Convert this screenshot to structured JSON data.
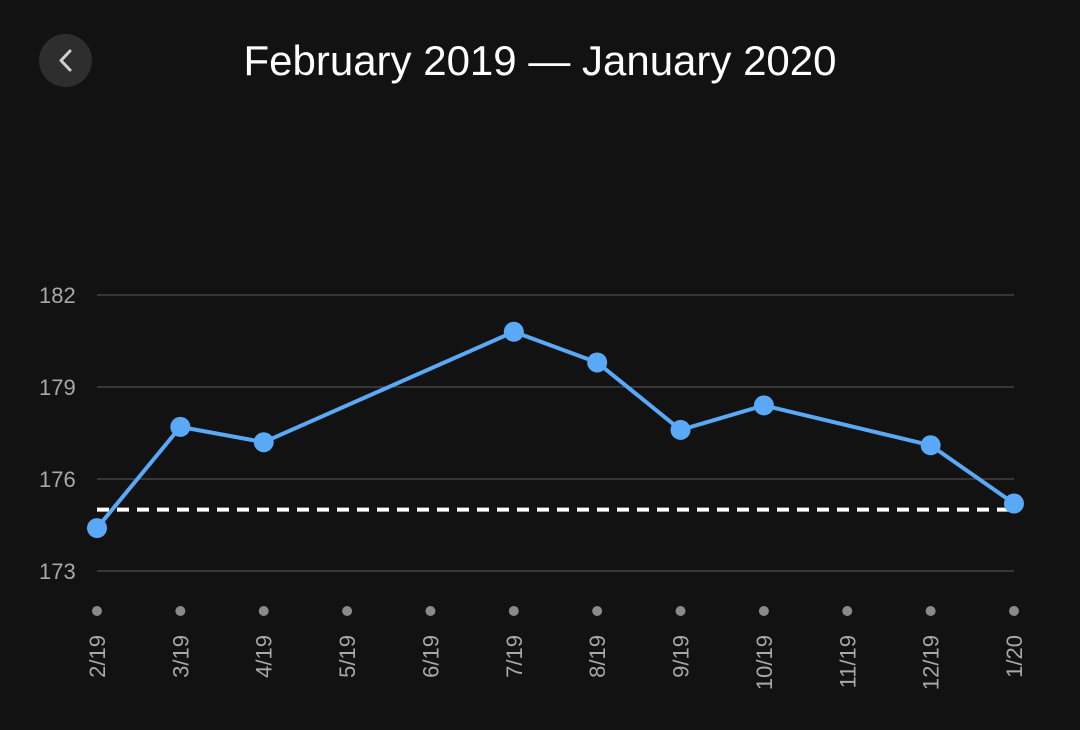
{
  "header": {
    "title": "February 2019 — January 2020",
    "back_icon": "chevron-left-icon"
  },
  "colors": {
    "background": "#121212",
    "line": "#5aa9f6",
    "grid": "#5a5a5a",
    "tick_text": "#a8a8a8",
    "reference": "#ffffff"
  },
  "chart_data": {
    "type": "line",
    "title": "",
    "xlabel": "",
    "ylabel": "",
    "categories": [
      "2/19",
      "3/19",
      "4/19",
      "5/19",
      "6/19",
      "7/19",
      "8/19",
      "9/19",
      "10/19",
      "11/19",
      "12/19",
      "1/20"
    ],
    "series": [
      {
        "values": [
          174.4,
          177.7,
          177.2,
          null,
          null,
          180.8,
          179.8,
          177.6,
          178.4,
          null,
          177.1,
          175.2
        ]
      }
    ],
    "y_ticks": [
      173,
      176,
      179,
      182
    ],
    "ylim": [
      173,
      182
    ],
    "reference_line": 175.0,
    "grid": "horizontal",
    "legend": "none"
  }
}
